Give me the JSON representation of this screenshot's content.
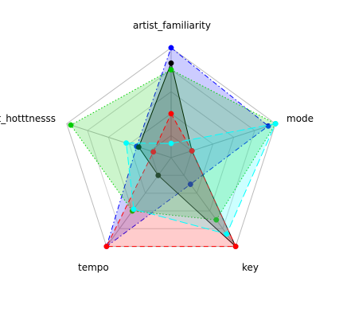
{
  "chart_data": {
    "type": "radar",
    "axes": [
      "artist_familiarity",
      "mode",
      "key",
      "tempo",
      "artist_hotttnesss"
    ],
    "grid": true,
    "rlim": [
      0,
      1
    ],
    "series": [
      {
        "color": "#0000ff",
        "line_style": "dashdot",
        "values": [
          1.0,
          0.93,
          0.3,
          1.0,
          0.33
        ]
      },
      {
        "color": "#000000",
        "line_style": "solid",
        "values": [
          0.86,
          0.2,
          1.0,
          0.2,
          0.31
        ]
      },
      {
        "color": "#00cc00",
        "line_style": "dotted",
        "values": [
          0.8,
          1.0,
          0.7,
          0.6,
          0.96
        ]
      },
      {
        "color": "#ff0000",
        "line_style": "dashed",
        "values": [
          0.4,
          0.2,
          1.0,
          1.0,
          0.17
        ]
      },
      {
        "color": "#00ffff",
        "line_style": "longdash",
        "values": [
          0.13,
          1.0,
          0.86,
          0.58,
          0.43
        ]
      }
    ]
  }
}
